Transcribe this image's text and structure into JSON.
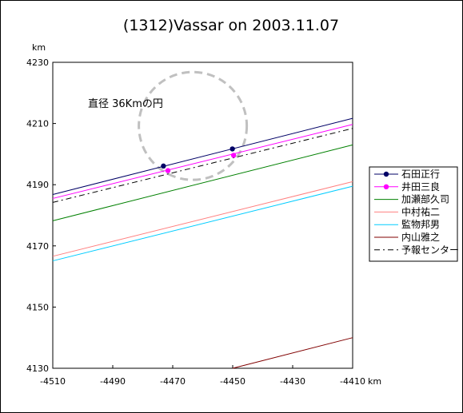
{
  "chart_data": {
    "type": "line",
    "title": "(1312)Vassar on 2003.11.07",
    "xunit": "km",
    "yunit": "km",
    "xlim": [
      -4510,
      -4410
    ],
    "ylim": [
      4130,
      4230
    ],
    "xticks": [
      -4510,
      -4490,
      -4470,
      -4450,
      -4430,
      -4410
    ],
    "yticks": [
      4130,
      4150,
      4170,
      4190,
      4210,
      4230
    ],
    "grid": false,
    "legend_position": "right",
    "annotation": {
      "text": "直径 36Kmの円",
      "circle": {
        "center": [
          -4463.3,
          4209.2
        ],
        "radius": 18
      }
    },
    "series": [
      {
        "name": "石田正行",
        "color": "#000066",
        "style": "solid",
        "marker": "circle",
        "line": [
          [
            -4510,
            4186.8
          ],
          [
            -4410,
            4211.7
          ]
        ],
        "points": [
          [
            -4473.1,
            4196.1
          ],
          [
            -4450.1,
            4201.7
          ]
        ]
      },
      {
        "name": "井田三良",
        "color": "#ff00ff",
        "style": "solid",
        "marker": "circle",
        "line": [
          [
            -4510,
            4185.5
          ],
          [
            -4410,
            4209.7
          ]
        ],
        "points": [
          [
            -4471.6,
            4194.6
          ],
          [
            -4449.7,
            4199.6
          ]
        ]
      },
      {
        "name": "加瀬部久司",
        "color": "#008000",
        "style": "solid",
        "marker": "none",
        "line": [
          [
            -4510,
            4178.2
          ],
          [
            -4410,
            4203.0
          ]
        ]
      },
      {
        "name": "中村祐二",
        "color": "#ff8080",
        "style": "solid",
        "marker": "none",
        "line": [
          [
            -4510,
            4166.6
          ],
          [
            -4410,
            4191.0
          ]
        ]
      },
      {
        "name": "監物邦男",
        "color": "#00ccff",
        "style": "solid",
        "marker": "none",
        "line": [
          [
            -4510,
            4165.1
          ],
          [
            -4410,
            4189.5
          ]
        ]
      },
      {
        "name": "内山雅之",
        "color": "#800000",
        "style": "solid",
        "marker": "none",
        "line": [
          [
            -4450,
            4130
          ],
          [
            -4410,
            4140.0
          ]
        ]
      },
      {
        "name": "予報センター",
        "color": "#000000",
        "style": "dashdot",
        "marker": "none",
        "line": [
          [
            -4510,
            4184.2
          ],
          [
            -4410,
            4208.4
          ]
        ]
      }
    ]
  }
}
